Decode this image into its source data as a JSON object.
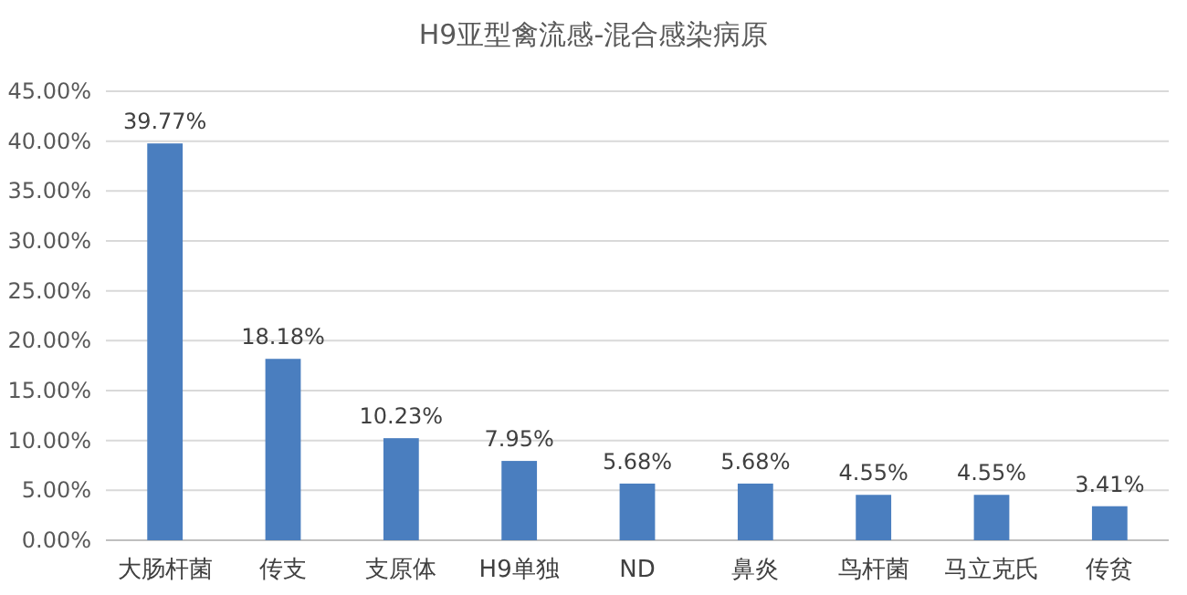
{
  "chart_data": {
    "type": "bar",
    "title": "H9亚型禽流感-混合感染病原",
    "categories": [
      "大肠杆菌",
      "传支",
      "支原体",
      "H9单独",
      "ND",
      "鼻炎",
      "鸟杆菌",
      "马立克氏",
      "传贫"
    ],
    "values": [
      39.77,
      18.18,
      10.23,
      7.95,
      5.68,
      5.68,
      4.55,
      4.55,
      3.41
    ],
    "value_labels": [
      "39.77%",
      "18.18%",
      "10.23%",
      "7.95%",
      "5.68%",
      "5.68%",
      "4.55%",
      "4.55%",
      "3.41%"
    ],
    "color": "#4a7ebf",
    "ylim": [
      0,
      45
    ],
    "yticks": [
      {
        "value": 0,
        "label": "0.00%"
      },
      {
        "value": 5,
        "label": "5.00%"
      },
      {
        "value": 10,
        "label": "10.00%"
      },
      {
        "value": 15,
        "label": "15.00%"
      },
      {
        "value": 20,
        "label": "20.00%"
      },
      {
        "value": 25,
        "label": "25.00%"
      },
      {
        "value": 30,
        "label": "30.00%"
      },
      {
        "value": 35,
        "label": "35.00%"
      },
      {
        "value": 40,
        "label": "40.00%"
      },
      {
        "value": 45,
        "label": "45.00%"
      }
    ],
    "grid": "y"
  }
}
